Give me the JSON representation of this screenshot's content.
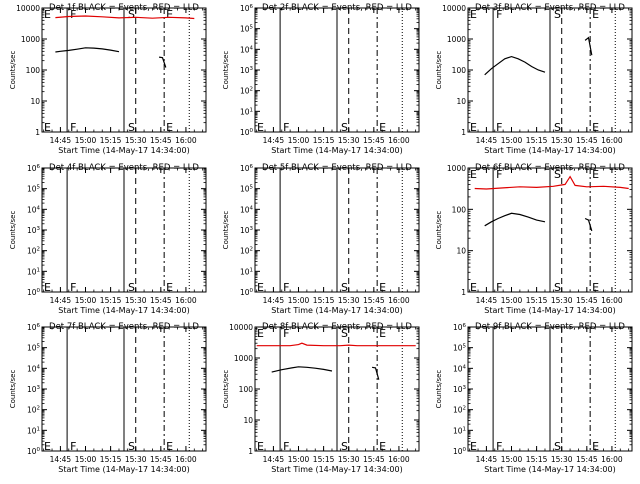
{
  "chart_data": [
    {
      "type": "line",
      "title": "Det 1f BLACK = Events, RED = LLD",
      "xlabel": "Start Time (14-May-17 14:34:00)",
      "ylabel": "Counts/sec",
      "yscale": "log",
      "xlim": [
        "14:34",
        "16:12"
      ],
      "ylim": [
        1,
        10000
      ],
      "xticks": [
        "14:45",
        "15:00",
        "15:15",
        "15:30",
        "15:45",
        "16:00"
      ],
      "yticks": [
        "1",
        "10",
        "100",
        "1000",
        "10000"
      ],
      "markers": [
        "E",
        "F",
        "S",
        "E"
      ],
      "series": [
        {
          "color": "#e00000",
          "x": [
            "14:42",
            "14:50",
            "15:00",
            "15:10",
            "15:20",
            "15:30",
            "15:40",
            "15:50",
            "16:00",
            "16:05"
          ],
          "y": [
            4900,
            5300,
            5500,
            5200,
            4800,
            5000,
            4700,
            5000,
            4800,
            4600
          ]
        },
        {
          "color": "#000000",
          "x": [
            "14:42",
            "14:45",
            "14:50",
            "14:55",
            "15:00",
            "15:05",
            "15:10",
            "15:15",
            "15:20"
          ],
          "y": [
            380,
            400,
            430,
            470,
            520,
            510,
            480,
            440,
            390
          ]
        },
        {
          "color": "#000000",
          "x": [
            "15:44",
            "15:46",
            "15:48"
          ],
          "y": [
            260,
            250,
            120
          ]
        }
      ]
    },
    {
      "type": "line",
      "title": "Det 2f BLACK = Events, RED = LLD",
      "xlabel": "Start Time (14-May-17 14:34:00)",
      "ylabel": "Counts/sec",
      "yscale": "log",
      "xlim": [
        "14:34",
        "16:12"
      ],
      "ylim": [
        "1e0",
        "1e6"
      ],
      "xticks": [
        "14:45",
        "15:00",
        "15:15",
        "15:30",
        "15:45",
        "16:00"
      ],
      "yticks": [
        "10^0",
        "10^1",
        "10^2",
        "10^3",
        "10^4",
        "10^5",
        "10^6"
      ],
      "markers": [
        "E",
        "F",
        "S",
        "E"
      ],
      "series": []
    },
    {
      "type": "line",
      "title": "Det 3f BLACK = Events, RED = LLD",
      "xlabel": "Start Time (14-May-17 14:34:00)",
      "ylabel": "Counts/sec",
      "yscale": "log",
      "xlim": [
        "14:34",
        "16:12"
      ],
      "ylim": [
        1,
        10000
      ],
      "xticks": [
        "14:45",
        "15:00",
        "15:15",
        "15:30",
        "15:45",
        "16:00"
      ],
      "yticks": [
        "1",
        "10",
        "100",
        "1000",
        "10000"
      ],
      "markers": [
        "E",
        "F",
        "S",
        "E"
      ],
      "series": [
        {
          "color": "#000000",
          "x": [
            "14:44",
            "14:48",
            "14:52",
            "14:56",
            "15:00",
            "15:04",
            "15:08",
            "15:12",
            "15:16",
            "15:20"
          ],
          "y": [
            70,
            110,
            160,
            230,
            270,
            230,
            180,
            130,
            100,
            85
          ]
        },
        {
          "color": "#000000",
          "x": [
            "15:44",
            "15:46",
            "15:48"
          ],
          "y": [
            900,
            1100,
            300
          ]
        }
      ]
    },
    {
      "type": "line",
      "title": "Det 4f BLACK = Events, RED = LLD",
      "xlabel": "Start Time (14-May-17 14:34:00)",
      "ylabel": "Counts/sec",
      "yscale": "log",
      "xlim": [
        "14:34",
        "16:12"
      ],
      "ylim": [
        "1e0",
        "1e6"
      ],
      "xticks": [
        "14:45",
        "15:00",
        "15:15",
        "15:30",
        "15:45",
        "16:00"
      ],
      "yticks": [
        "10^0",
        "10^1",
        "10^2",
        "10^3",
        "10^4",
        "10^5",
        "10^6"
      ],
      "markers": [
        "E",
        "F",
        "S",
        "E"
      ],
      "series": []
    },
    {
      "type": "line",
      "title": "Det 5f BLACK = Events, RED = LLD",
      "xlabel": "Start Time (14-May-17 14:34:00)",
      "ylabel": "Counts/sec",
      "yscale": "log",
      "xlim": [
        "14:34",
        "16:12"
      ],
      "ylim": [
        "1e0",
        "1e6"
      ],
      "xticks": [
        "14:45",
        "15:00",
        "15:15",
        "15:30",
        "15:45",
        "16:00"
      ],
      "yticks": [
        "10^0",
        "10^1",
        "10^2",
        "10^3",
        "10^4",
        "10^5",
        "10^6"
      ],
      "markers": [
        "E",
        "F",
        "S",
        "E"
      ],
      "series": []
    },
    {
      "type": "line",
      "title": "Det 6f BLACK = Events, RED = LLD",
      "xlabel": "Start Time (14-May-17 14:34:00)",
      "ylabel": "Counts/sec",
      "yscale": "log",
      "xlim": [
        "14:34",
        "16:12"
      ],
      "ylim": [
        1,
        1000
      ],
      "xticks": [
        "14:45",
        "15:00",
        "15:15",
        "15:30",
        "15:45",
        "16:00"
      ],
      "yticks": [
        "1",
        "10",
        "100",
        "1000"
      ],
      "markers": [
        "E",
        "F",
        "S",
        "E"
      ],
      "series": [
        {
          "color": "#e00000",
          "x": [
            "14:38",
            "14:45",
            "14:55",
            "15:05",
            "15:15",
            "15:25",
            "15:32",
            "15:35",
            "15:38",
            "15:45",
            "15:55",
            "16:05",
            "16:10"
          ],
          "y": [
            320,
            310,
            330,
            350,
            340,
            360,
            400,
            620,
            380,
            350,
            360,
            340,
            320
          ]
        },
        {
          "color": "#000000",
          "x": [
            "14:44",
            "14:48",
            "14:52",
            "14:56",
            "15:00",
            "15:05",
            "15:10",
            "15:15",
            "15:20"
          ],
          "y": [
            40,
            50,
            60,
            70,
            80,
            75,
            65,
            55,
            50
          ]
        },
        {
          "color": "#000000",
          "x": [
            "15:44",
            "15:46",
            "15:48"
          ],
          "y": [
            60,
            55,
            30
          ]
        }
      ]
    },
    {
      "type": "line",
      "title": "Det 7f BLACK = Events, RED = LLD",
      "xlabel": "Start Time (14-May-17 14:34:00)",
      "ylabel": "Counts/sec",
      "yscale": "log",
      "xlim": [
        "14:34",
        "16:12"
      ],
      "ylim": [
        "1e0",
        "1e6"
      ],
      "xticks": [
        "14:45",
        "15:00",
        "15:15",
        "15:30",
        "15:45",
        "16:00"
      ],
      "yticks": [
        "10^0",
        "10^1",
        "10^2",
        "10^3",
        "10^4",
        "10^5",
        "10^6"
      ],
      "markers": [
        "E",
        "F",
        "S",
        "E"
      ],
      "series": []
    },
    {
      "type": "line",
      "title": "Det 8f BLACK = Events, RED = LLD",
      "xlabel": "Start Time (14-May-17 14:34:00)",
      "ylabel": "Counts/sec",
      "yscale": "log",
      "xlim": [
        "14:34",
        "16:12"
      ],
      "ylim": [
        1,
        10000
      ],
      "xticks": [
        "14:45",
        "15:00",
        "15:15",
        "15:30",
        "15:45",
        "16:00"
      ],
      "yticks": [
        "1",
        "10",
        "100",
        "1000",
        "10000"
      ],
      "markers": [
        "E",
        "F",
        "S",
        "E"
      ],
      "series": [
        {
          "color": "#e00000",
          "x": [
            "14:35",
            "14:45",
            "14:55",
            "15:00",
            "15:02",
            "15:05",
            "15:15",
            "15:25",
            "15:30",
            "15:35",
            "15:45",
            "15:55",
            "16:05",
            "16:10"
          ],
          "y": [
            2500,
            2500,
            2500,
            2700,
            3000,
            2600,
            2500,
            2500,
            2600,
            2500,
            2500,
            2500,
            2500,
            2500
          ]
        },
        {
          "color": "#000000",
          "x": [
            "14:44",
            "14:50",
            "14:56",
            "15:00",
            "15:05",
            "15:10",
            "15:15",
            "15:20"
          ],
          "y": [
            350,
            420,
            480,
            520,
            500,
            470,
            430,
            380
          ]
        },
        {
          "color": "#000000",
          "x": [
            "15:44",
            "15:46",
            "15:48"
          ],
          "y": [
            500,
            480,
            200
          ]
        }
      ]
    },
    {
      "type": "line",
      "title": "Det 9f BLACK = Events, RED = LLD",
      "xlabel": "Start Time (14-May-17 14:34:00)",
      "ylabel": "Counts/sec",
      "yscale": "log",
      "xlim": [
        "14:34",
        "16:12"
      ],
      "ylim": [
        "1e0",
        "1e6"
      ],
      "xticks": [
        "14:45",
        "15:00",
        "15:15",
        "15:30",
        "15:45",
        "16:00"
      ],
      "yticks": [
        "10^0",
        "10^1",
        "10^2",
        "10^3",
        "10^4",
        "10^5",
        "10^6"
      ],
      "markers": [
        "E",
        "F",
        "S",
        "E"
      ],
      "series": []
    }
  ]
}
